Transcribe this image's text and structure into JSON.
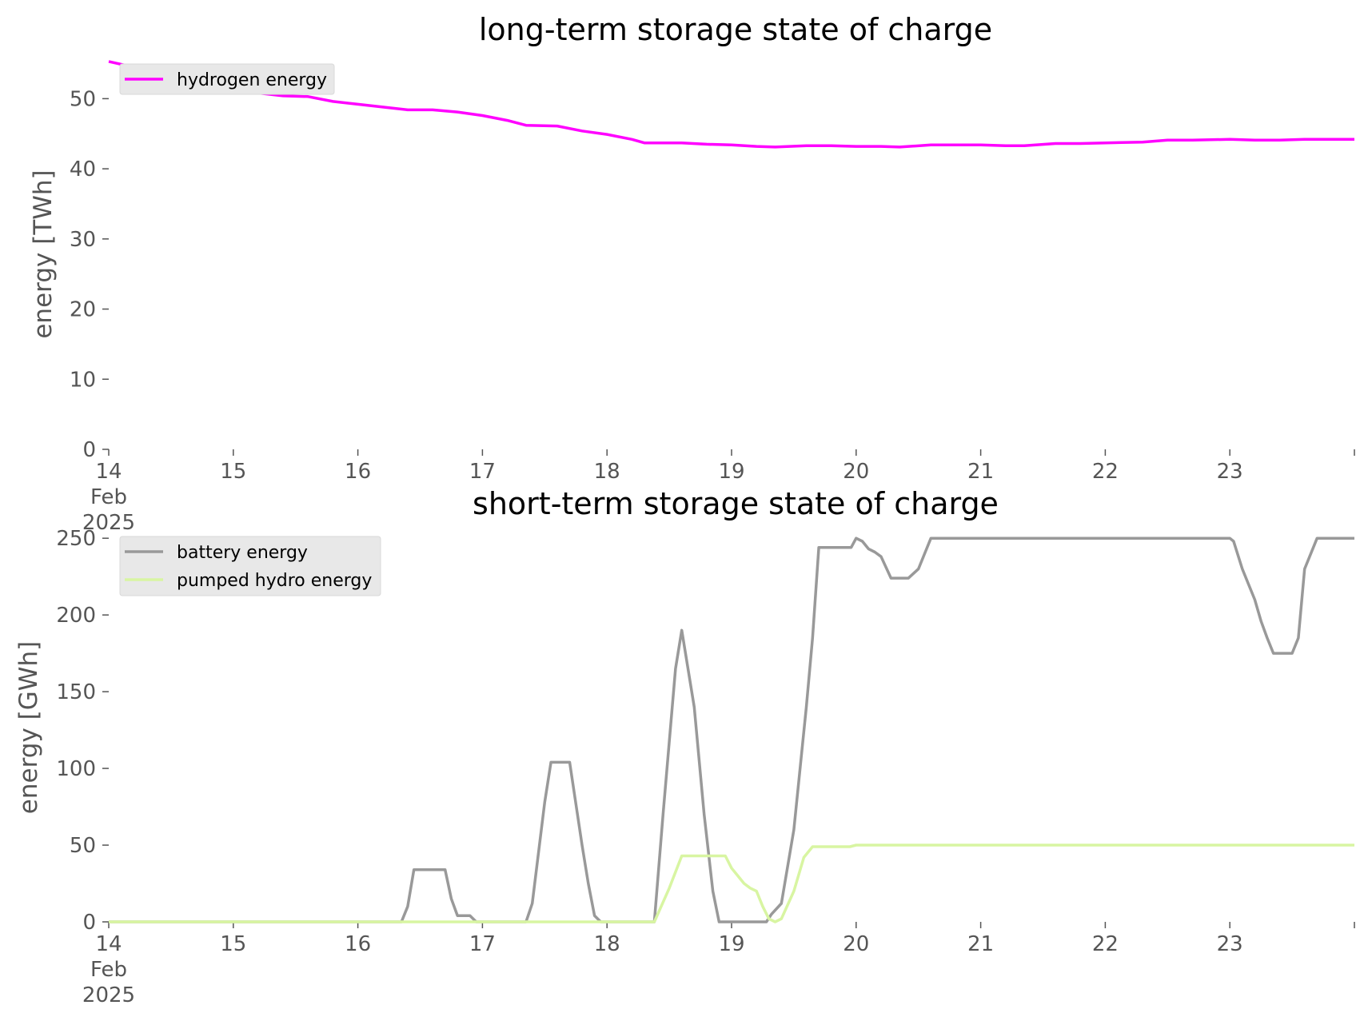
{
  "chart_data": [
    {
      "type": "line",
      "title": "long-term storage state of charge",
      "ylabel": "energy [TWh]",
      "xlabel": "",
      "x_ticks": [
        "14",
        "15",
        "16",
        "17",
        "18",
        "19",
        "20",
        "21",
        "22",
        "23"
      ],
      "x_tick_sub": [
        "Feb",
        "2025"
      ],
      "xlim_days": [
        14,
        24
      ],
      "ylim": [
        0,
        57
      ],
      "y_ticks": [
        0,
        10,
        20,
        30,
        40,
        50
      ],
      "grid": false,
      "legend_position": "upper left",
      "series": [
        {
          "name": "hydrogen energy",
          "color": "#ff00ff",
          "x": [
            14.0,
            14.2,
            14.4,
            14.6,
            14.8,
            15.0,
            15.2,
            15.4,
            15.6,
            15.8,
            16.0,
            16.2,
            16.4,
            16.6,
            16.8,
            17.0,
            17.2,
            17.35,
            17.6,
            17.8,
            18.0,
            18.2,
            18.3,
            18.6,
            18.8,
            19.0,
            19.2,
            19.35,
            19.6,
            19.8,
            20.0,
            20.2,
            20.35,
            20.6,
            20.8,
            21.0,
            21.2,
            21.35,
            21.6,
            21.8,
            22.0,
            22.3,
            22.5,
            22.7,
            23.0,
            23.2,
            23.4,
            23.6,
            23.8,
            24.0
          ],
          "values": [
            55.3,
            54.5,
            53.8,
            53.0,
            52.5,
            51.6,
            50.8,
            50.4,
            50.3,
            49.6,
            49.2,
            48.8,
            48.4,
            48.4,
            48.1,
            47.6,
            46.9,
            46.2,
            46.1,
            45.4,
            44.9,
            44.2,
            43.7,
            43.7,
            43.5,
            43.4,
            43.2,
            43.1,
            43.3,
            43.3,
            43.2,
            43.2,
            43.1,
            43.4,
            43.4,
            43.4,
            43.3,
            43.3,
            43.6,
            43.6,
            43.7,
            43.8,
            44.1,
            44.1,
            44.2,
            44.1,
            44.1,
            44.2,
            44.2,
            44.2
          ]
        }
      ]
    },
    {
      "type": "line",
      "title": "short-term storage state of charge",
      "ylabel": "energy [GWh]",
      "xlabel": "",
      "x_ticks": [
        "14",
        "15",
        "16",
        "17",
        "18",
        "19",
        "20",
        "21",
        "22",
        "23"
      ],
      "x_tick_sub": [
        "Feb",
        "2025"
      ],
      "xlim_days": [
        14,
        24
      ],
      "ylim": [
        0,
        260
      ],
      "y_ticks": [
        0,
        50,
        100,
        150,
        200,
        250
      ],
      "grid": false,
      "legend_position": "upper left",
      "series": [
        {
          "name": "battery energy",
          "color": "#999999",
          "x": [
            14.0,
            16.35,
            16.4,
            16.45,
            16.55,
            16.7,
            16.75,
            16.8,
            16.9,
            16.95,
            17.0,
            17.35,
            17.4,
            17.5,
            17.55,
            17.7,
            17.8,
            17.85,
            17.9,
            17.95,
            18.0,
            18.38,
            18.45,
            18.55,
            18.6,
            18.65,
            18.7,
            18.78,
            18.85,
            18.9,
            19.25,
            19.28,
            19.32,
            19.4,
            19.5,
            19.6,
            19.65,
            19.7,
            19.85,
            19.92,
            19.96,
            20.0,
            20.05,
            20.1,
            20.15,
            20.2,
            20.28,
            20.35,
            20.42,
            20.5,
            20.55,
            20.6,
            22.95,
            23.0,
            23.03,
            23.1,
            23.2,
            23.25,
            23.3,
            23.35,
            23.4,
            23.45,
            23.5,
            23.55,
            23.6,
            23.7,
            24.0
          ],
          "values": [
            0,
            0,
            10,
            34,
            34,
            34,
            15,
            4,
            4,
            0,
            0,
            0,
            12,
            78,
            104,
            104,
            50,
            25,
            4,
            0,
            0,
            0,
            70,
            165,
            190,
            165,
            140,
            70,
            20,
            0,
            0,
            0,
            5,
            12,
            60,
            140,
            185,
            244,
            244,
            244,
            244,
            250,
            248,
            243,
            241,
            238,
            224,
            224,
            224,
            230,
            240,
            250,
            250,
            250,
            248,
            230,
            210,
            196,
            185,
            175,
            175,
            175,
            175,
            185,
            230,
            250,
            250
          ]
        },
        {
          "name": "pumped hydro energy",
          "color": "#d8f5a2",
          "x": [
            14.0,
            18.38,
            18.5,
            18.6,
            18.75,
            18.95,
            19.0,
            19.05,
            19.1,
            19.15,
            19.2,
            19.25,
            19.3,
            19.35,
            19.4,
            19.5,
            19.58,
            19.65,
            19.95,
            20.0,
            24.0
          ],
          "values": [
            0,
            0,
            22,
            43,
            43,
            43,
            35,
            30,
            25,
            22,
            20,
            10,
            2,
            0,
            2,
            20,
            42,
            49,
            49,
            50,
            50
          ]
        }
      ]
    }
  ]
}
